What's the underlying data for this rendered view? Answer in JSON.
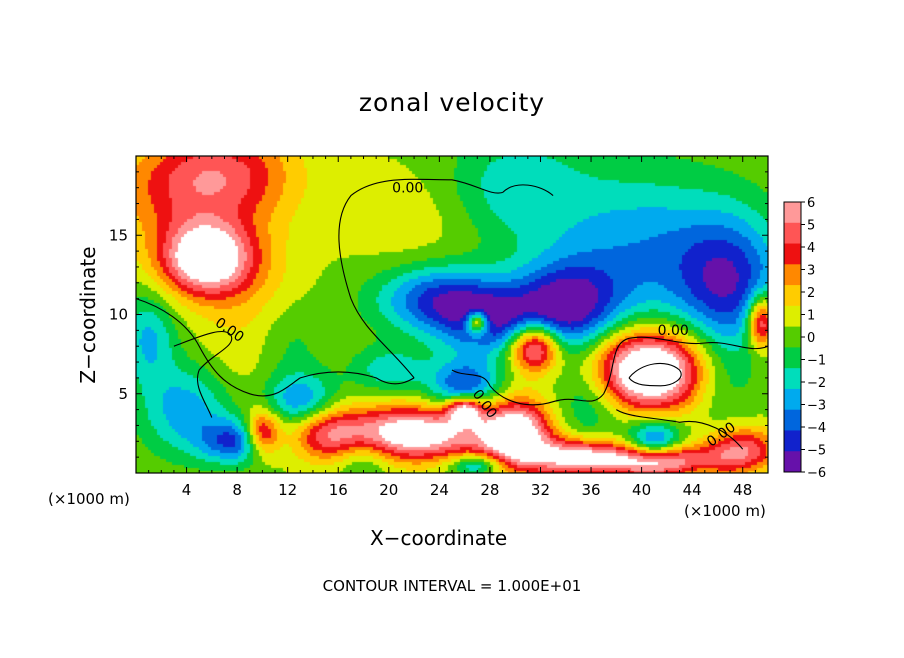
{
  "chart_data": {
    "type": "heatmap",
    "title": "zonal velocity",
    "xlabel": "X−coordinate",
    "ylabel": "Z−coordinate",
    "x_unit": "(×1000 m)",
    "xlim": [
      0,
      50
    ],
    "ylim": [
      0,
      20
    ],
    "x_ticks": [
      4,
      8,
      12,
      16,
      20,
      24,
      28,
      32,
      36,
      40,
      44,
      48
    ],
    "y_ticks": [
      5,
      10,
      15
    ],
    "colorbar": {
      "levels": [
        6,
        5,
        4,
        3,
        2,
        1,
        0,
        -1,
        -2,
        -3,
        -4,
        -5,
        -6
      ],
      "labels": [
        "6",
        "5",
        "4",
        "3",
        "2",
        "1",
        "0",
        "−1",
        "−2",
        "−3",
        "−4",
        "−5",
        "−6"
      ],
      "colors": [
        "#ff9999",
        "#ff5555",
        "#ee1111",
        "#ff8800",
        "#ffcc00",
        "#ddee00",
        "#55cc00",
        "#00cc44",
        "#00ddbb",
        "#00aaee",
        "#0066dd",
        "#1122cc",
        "#6611aa"
      ]
    },
    "contour_labels": [
      "0.00",
      "0.00",
      "0.00",
      "0.00",
      "0.00"
    ],
    "footer": "CONTOUR INTERVAL = 1.000E+01",
    "features": [
      {
        "x": 3,
        "z": 17.5,
        "u": 2.5,
        "sx": 4,
        "sz": 2.5
      },
      {
        "x": 7,
        "z": 19,
        "u": 3.5,
        "sx": 4,
        "sz": 2
      },
      {
        "x": 5.5,
        "z": 13.5,
        "u": 8,
        "sx": 2.5,
        "sz": 1.6
      },
      {
        "x": 9,
        "z": 11,
        "u": 1.5,
        "sx": 3,
        "sz": 5
      },
      {
        "x": 22,
        "z": 16,
        "u": 1,
        "sx": 4,
        "sz": 2.5
      },
      {
        "x": 30,
        "z": 18,
        "u": -2.5,
        "sx": 4,
        "sz": 2.5
      },
      {
        "x": 40,
        "z": 14,
        "u": -3.5,
        "sx": 5,
        "sz": 3.5
      },
      {
        "x": 47,
        "z": 12,
        "u": -5,
        "sx": 3,
        "sz": 3
      },
      {
        "x": 24,
        "z": 11,
        "u": -5,
        "sx": 3.5,
        "sz": 1.5
      },
      {
        "x": 34,
        "z": 10.5,
        "u": -6,
        "sx": 3,
        "sz": 2
      },
      {
        "x": 28,
        "z": 9.5,
        "u": -4.5,
        "sx": 3,
        "sz": 1.5
      },
      {
        "x": 31.5,
        "z": 8,
        "u": 8,
        "sx": 1.4,
        "sz": 1.1
      },
      {
        "x": 27,
        "z": 9.5,
        "u": 7,
        "sx": 0.6,
        "sz": 0.5
      },
      {
        "x": 49.5,
        "z": 9.5,
        "u": 7,
        "sx": 0.8,
        "sz": 1.2
      },
      {
        "x": 40.5,
        "z": 6.5,
        "u": 10,
        "sx": 3.5,
        "sz": 1.8
      },
      {
        "x": 46,
        "z": 6,
        "u": -2,
        "sx": 2,
        "sz": 2
      },
      {
        "x": 36,
        "z": 5,
        "u": -3,
        "sx": 2,
        "sz": 2
      },
      {
        "x": 22,
        "z": 2.5,
        "u": 8,
        "sx": 4,
        "sz": 1.2
      },
      {
        "x": 30,
        "z": 2.5,
        "u": 8,
        "sx": 2,
        "sz": 1.5
      },
      {
        "x": 26,
        "z": 4,
        "u": 7,
        "sx": 1,
        "sz": 0.6
      },
      {
        "x": 26,
        "z": 5.5,
        "u": -5,
        "sx": 2,
        "sz": 1.2
      },
      {
        "x": 35,
        "z": 1,
        "u": 7,
        "sx": 3,
        "sz": 0.8
      },
      {
        "x": 42,
        "z": 0.7,
        "u": 8,
        "sx": 3,
        "sz": 0.7
      },
      {
        "x": 48,
        "z": 1.5,
        "u": 5,
        "sx": 2,
        "sz": 1
      },
      {
        "x": 41,
        "z": 2,
        "u": -5,
        "sx": 1.5,
        "sz": 1
      },
      {
        "x": 15,
        "z": 2.5,
        "u": 4,
        "sx": 2,
        "sz": 1.2
      },
      {
        "x": 10,
        "z": 2.5,
        "u": 6,
        "sx": 1,
        "sz": 1
      },
      {
        "x": 8,
        "z": 2,
        "u": -5,
        "sx": 2,
        "sz": 1
      },
      {
        "x": 13,
        "z": 4.5,
        "u": -4,
        "sx": 2,
        "sz": 1.2
      },
      {
        "x": 4,
        "z": 4,
        "u": -3.5,
        "sx": 2.5,
        "sz": 2
      },
      {
        "x": 1,
        "z": 8.5,
        "u": -3,
        "sx": 1.5,
        "sz": 2
      },
      {
        "x": 20,
        "z": 6.5,
        "u": -2.5,
        "sx": 2,
        "sz": 1
      },
      {
        "x": 18,
        "z": 1,
        "u": -2,
        "sx": 1.5,
        "sz": 1
      },
      {
        "x": 44,
        "z": 0.5,
        "u": -2,
        "sx": 1.5,
        "sz": 0.6
      },
      {
        "x": 27,
        "z": 0.5,
        "u": -4,
        "sx": 1.5,
        "sz": 0.5
      },
      {
        "x": 12,
        "z": 8,
        "u": -1.5,
        "sx": 2,
        "sz": 2
      }
    ]
  }
}
